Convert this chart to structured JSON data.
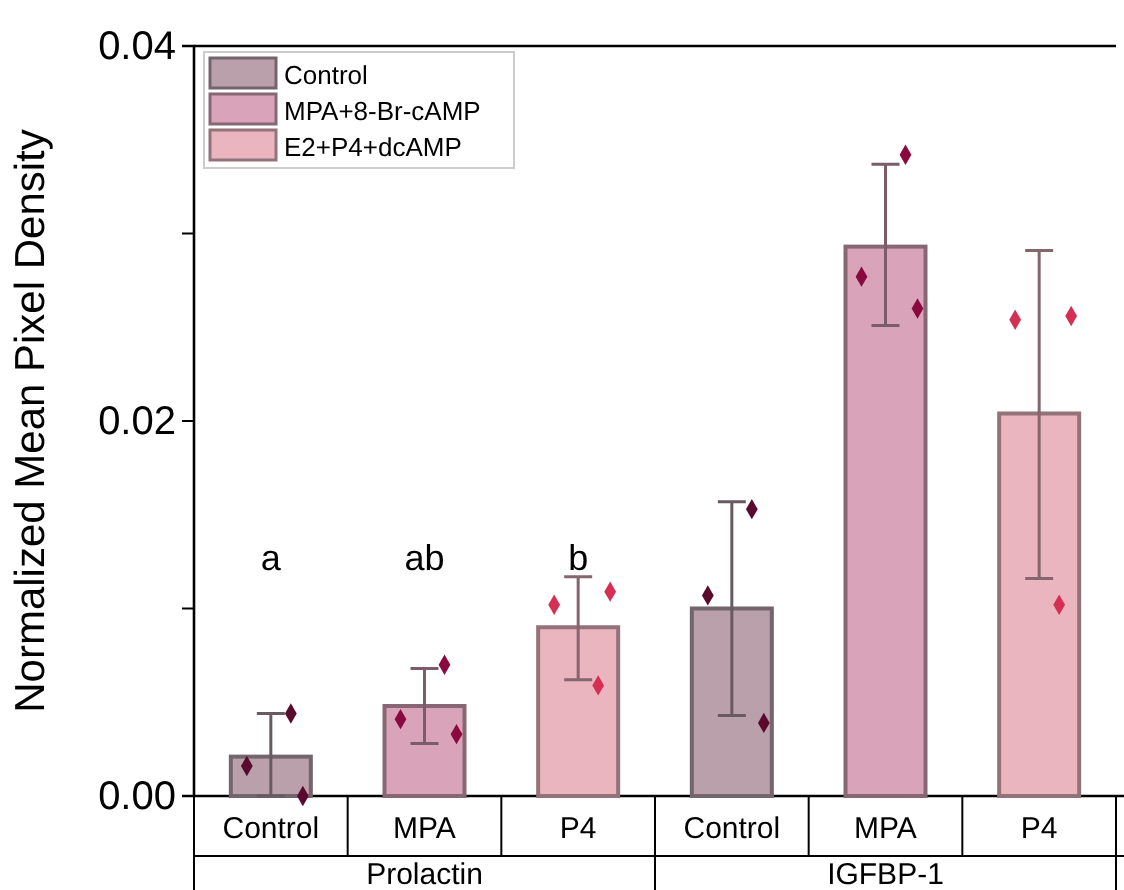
{
  "chart_data": {
    "type": "bar",
    "ylabel": "Normalized Mean Pixel Density",
    "categories": [
      "Control",
      "MPA",
      "P4",
      "Control",
      "MPA",
      "P4"
    ],
    "ylim": [
      0,
      0.04
    ],
    "yticks": [
      {
        "value": 0,
        "label": "0.00"
      },
      {
        "value": 0.01,
        "label": null
      },
      {
        "value": 0.02,
        "label": "0.02"
      },
      {
        "value": 0.03,
        "label": null
      },
      {
        "value": 0.04,
        "label": "0.04"
      }
    ],
    "legend": "top left",
    "grid": false,
    "series": [
      {
        "name": "Control",
        "color": "#b9a0ab",
        "values": [
          0.0021,
          null,
          null,
          0.01,
          null,
          null
        ],
        "errors": [
          [
            0,
            0.0044
          ],
          null,
          null,
          [
            0.0043,
            0.0157
          ],
          null,
          null
        ]
      },
      {
        "name": "MPA+8-Br-cAMP",
        "color": "#d9a3b9",
        "values": [
          null,
          0.0048,
          null,
          null,
          0.0293,
          null
        ],
        "errors": [
          null,
          [
            0.0028,
            0.0068
          ],
          null,
          null,
          [
            0.0251,
            0.0337
          ],
          null
        ]
      },
      {
        "name": "E2+P4+dcAMP",
        "color": "#ebb5c0",
        "values": [
          null,
          null,
          0.009,
          null,
          null,
          0.0204
        ],
        "errors": [
          null,
          null,
          [
            0.0062,
            0.0117
          ],
          null,
          null,
          [
            0.0116,
            0.0291
          ]
        ]
      },
      {
        "type": "scatter",
        "marker": "diamond",
        "colors": [
          "#5a0a2e",
          "#8a0a3f",
          "#d62f55",
          "#5a0a2e",
          "#8a0a3f",
          "#d62f55"
        ],
        "values": [
          0.0016,
          0.0041,
          0.0102,
          0.0107,
          0.0277,
          0.0254
        ]
      },
      {
        "type": "scatter",
        "marker": "diamond",
        "colors": [
          "#5a0a2e",
          "#8a0a3f",
          "#d62f55",
          "#5a0a2e",
          "#8a0a3f",
          "#d62f55"
        ],
        "values": [
          0.0044,
          0.007,
          0.0059,
          0.0153,
          0.0342,
          0.0102
        ]
      },
      {
        "type": "scatter",
        "marker": "diamond",
        "colors": [
          "#5a0a2e",
          "#8a0a3f",
          "#d62f55",
          "#5a0a2e",
          "#8a0a3f",
          "#d62f55"
        ],
        "values": [
          0.0,
          0.0033,
          0.0109,
          0.0039,
          0.026,
          0.0256
        ]
      }
    ],
    "annotations": [
      "a",
      "ab",
      "b",
      "Prolactin",
      "IGFBP-1"
    ]
  }
}
